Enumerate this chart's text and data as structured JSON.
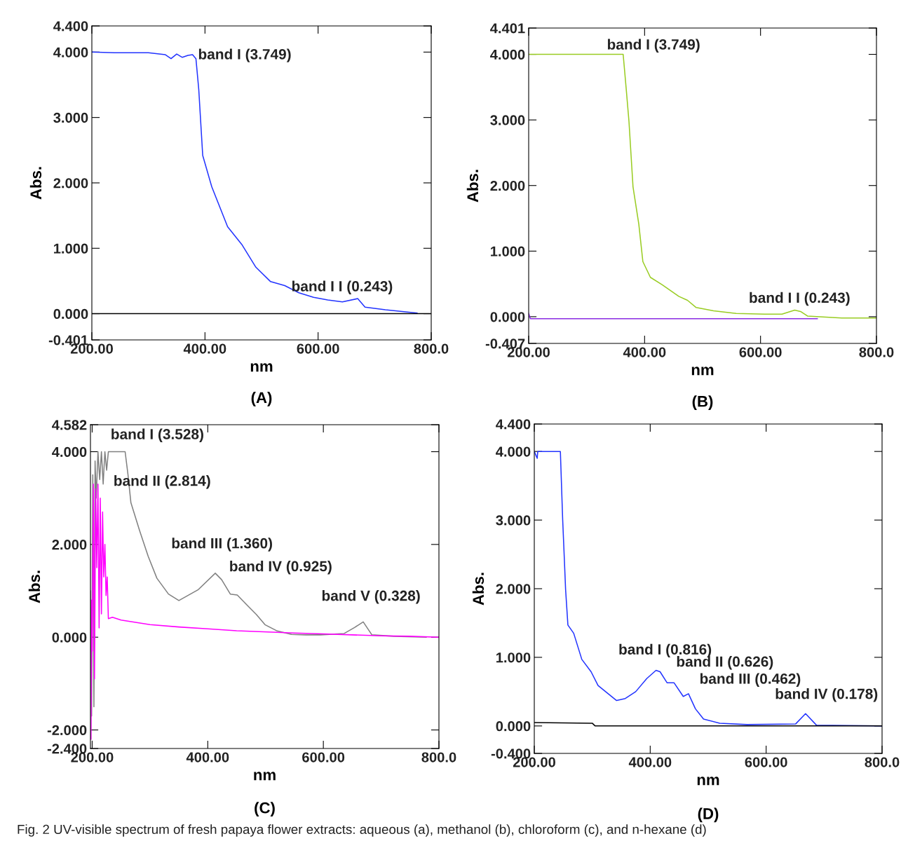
{
  "chart_data": [
    {
      "type": "line",
      "subtitle": "(A)",
      "xlabel": "nm",
      "ylabel": "Abs.",
      "xlim": [
        200,
        800
      ],
      "ylim": [
        -0.401,
        4.4
      ],
      "xticks": [
        {
          "value": 200,
          "label": "200.00"
        },
        {
          "value": 400,
          "label": "400.00"
        },
        {
          "value": 600,
          "label": "600.00"
        },
        {
          "value": 800,
          "label": "800.0"
        }
      ],
      "yticks": [
        {
          "value": -0.401,
          "label": "-0.401"
        },
        {
          "value": 0,
          "label": "0.000"
        },
        {
          "value": 1,
          "label": "1.000"
        },
        {
          "value": 2,
          "label": "2.000"
        },
        {
          "value": 3,
          "label": "3.000"
        },
        {
          "value": 4,
          "label": "4.000"
        },
        {
          "value": 4.4,
          "label": "4.400"
        }
      ],
      "series": [
        {
          "color": "#2233ff",
          "x": [
            200,
            240,
            300,
            330,
            340,
            350,
            360,
            370,
            378,
            384,
            389,
            396,
            412,
            440,
            465,
            490,
            516,
            541,
            566,
            592,
            617,
            643,
            670,
            683,
            719,
            775
          ],
          "values": [
            4.0,
            3.99,
            3.99,
            3.96,
            3.9,
            3.97,
            3.92,
            3.95,
            3.96,
            3.9,
            3.43,
            2.42,
            1.94,
            1.33,
            1.06,
            0.71,
            0.49,
            0.43,
            0.32,
            0.25,
            0.21,
            0.18,
            0.23,
            0.1,
            0.06,
            0.01
          ]
        },
        {
          "color": "#000000",
          "x": [
            200,
            800
          ],
          "values": [
            0,
            0
          ]
        }
      ],
      "annotations": [
        "band I (3.749)",
        "band I I (0.243)"
      ]
    },
    {
      "type": "line",
      "subtitle": "(B)",
      "xlabel": "nm",
      "ylabel": "Abs.",
      "xlim": [
        200,
        800
      ],
      "ylim": [
        -0.407,
        4.401
      ],
      "xticks": [
        {
          "value": 200,
          "label": "200.00"
        },
        {
          "value": 400,
          "label": "400.00"
        },
        {
          "value": 600,
          "label": "600.00"
        },
        {
          "value": 800,
          "label": "800.0"
        }
      ],
      "yticks": [
        {
          "value": -0.407,
          "label": "-0.407"
        },
        {
          "value": 0,
          "label": "0.000"
        },
        {
          "value": 1,
          "label": "1.000"
        },
        {
          "value": 2,
          "label": "2.000"
        },
        {
          "value": 3,
          "label": "3.000"
        },
        {
          "value": 4,
          "label": "4.000"
        },
        {
          "value": 4.401,
          "label": "4.401"
        }
      ],
      "series": [
        {
          "color": "#99cc22",
          "x": [
            200,
            250,
            300,
            363,
            365,
            368,
            373,
            380,
            390,
            397,
            410,
            430,
            459,
            474,
            489,
            519,
            558,
            607,
            637,
            659,
            669,
            681,
            740,
            800
          ],
          "values": [
            4.0,
            4.0,
            4.0,
            4.0,
            3.8,
            3.5,
            2.98,
            1.98,
            1.41,
            0.84,
            0.6,
            0.49,
            0.31,
            0.25,
            0.14,
            0.09,
            0.05,
            0.04,
            0.04,
            0.1,
            0.08,
            0.01,
            -0.02,
            -0.02
          ]
        },
        {
          "color": "#8a2be2",
          "x": [
            200,
            203,
            208,
            698
          ],
          "values": [
            0.05,
            -0.03,
            -0.03,
            -0.03
          ]
        }
      ],
      "annotations": [
        "band I (3.749)",
        "band I I (0.243)"
      ]
    },
    {
      "type": "line",
      "subtitle": "(C)",
      "xlabel": "nm",
      "ylabel": "Abs.",
      "xlim": [
        197,
        800
      ],
      "ylim": [
        -2.4,
        4.582
      ],
      "xticks": [
        {
          "value": 200,
          "label": "200.00"
        },
        {
          "value": 400,
          "label": "400.00"
        },
        {
          "value": 600,
          "label": "600.00"
        },
        {
          "value": 800,
          "label": "800.0"
        }
      ],
      "yticks": [
        {
          "value": -2.4,
          "label": "-2.400"
        },
        {
          "value": -2,
          "label": "-2.000"
        },
        {
          "value": 0,
          "label": "0.000"
        },
        {
          "value": 2,
          "label": "2.000"
        },
        {
          "value": 4,
          "label": "4.000"
        },
        {
          "value": 4.582,
          "label": "4.582"
        }
      ],
      "series": [
        {
          "color": "#808080",
          "x": [
            197,
            199,
            201,
            203,
            205,
            207,
            210,
            213,
            216,
            219,
            222,
            225,
            228,
            240,
            257,
            262,
            267,
            282,
            297,
            312,
            332,
            350,
            383,
            413,
            424,
            439,
            451,
            469,
            484,
            499,
            519,
            545,
            570,
            595,
            636,
            654,
            669,
            684,
            722,
            778
          ],
          "values": [
            1.0,
            -1.7,
            3.5,
            -1.5,
            3.8,
            3.0,
            4.0,
            3.4,
            4.0,
            3.3,
            4.0,
            3.6,
            4.0,
            4.0,
            4.0,
            3.5,
            2.9,
            2.3,
            1.74,
            1.27,
            0.93,
            0.79,
            1.02,
            1.38,
            1.24,
            0.93,
            0.91,
            0.68,
            0.49,
            0.27,
            0.14,
            0.06,
            0.05,
            0.05,
            0.08,
            0.21,
            0.33,
            0.05,
            0.02,
            0.0
          ]
        },
        {
          "color": "#ff00ff",
          "x": [
            198,
            199,
            200,
            202,
            204,
            206,
            208,
            210,
            212,
            214,
            216,
            218,
            220,
            222,
            224,
            226,
            228,
            235,
            250,
            300,
            350,
            400,
            450,
            512,
            550,
            600,
            650,
            700,
            750,
            800
          ],
          "values": [
            -2.2,
            0.8,
            -0.3,
            3.3,
            -0.9,
            3.2,
            1.5,
            3.3,
            0.2,
            3.0,
            0.5,
            2.7,
            1.3,
            2.0,
            0.9,
            1.3,
            0.4,
            0.43,
            0.37,
            0.27,
            0.22,
            0.18,
            0.14,
            0.11,
            0.09,
            0.07,
            0.05,
            0.03,
            0.02,
            0.0
          ]
        }
      ],
      "annotations": [
        "band I (3.528)",
        "band II (2.814)",
        "band III (1.360)",
        "band IV (0.925)",
        "band V (0.328)"
      ]
    },
    {
      "type": "line",
      "subtitle": "(D)",
      "xlabel": "nm",
      "ylabel": "Abs.",
      "xlim": [
        200,
        800
      ],
      "ylim": [
        -0.4,
        4.4
      ],
      "xticks": [
        {
          "value": 200,
          "label": "200.00"
        },
        {
          "value": 400,
          "label": "400.00"
        },
        {
          "value": 600,
          "label": "600.00"
        },
        {
          "value": 800,
          "label": "800.0"
        }
      ],
      "yticks": [
        {
          "value": -0.4,
          "label": "-0.400"
        },
        {
          "value": 0,
          "label": "0.000"
        },
        {
          "value": 1,
          "label": "1.000"
        },
        {
          "value": 2,
          "label": "2.000"
        },
        {
          "value": 3,
          "label": "3.000"
        },
        {
          "value": 4,
          "label": "4.000"
        },
        {
          "value": 4.4,
          "label": "4.400"
        }
      ],
      "series": [
        {
          "color": "#2233ff",
          "x": [
            200,
            205,
            206,
            210,
            245,
            249,
            252,
            254,
            258,
            268,
            282,
            298,
            310,
            323,
            342,
            357,
            375,
            394,
            410,
            417,
            429,
            441,
            457,
            466,
            478,
            492,
            520,
            567,
            651,
            668,
            687,
            800
          ],
          "values": [
            4.0,
            3.9,
            4.0,
            4.0,
            4.0,
            3.0,
            2.4,
            1.99,
            1.47,
            1.35,
            0.97,
            0.79,
            0.59,
            0.5,
            0.37,
            0.4,
            0.5,
            0.69,
            0.81,
            0.79,
            0.63,
            0.63,
            0.43,
            0.47,
            0.25,
            0.1,
            0.04,
            0.02,
            0.03,
            0.18,
            0.01,
            0.0
          ]
        },
        {
          "color": "#000000",
          "x": [
            200,
            300,
            305,
            800
          ],
          "values": [
            0.05,
            0.04,
            0.0,
            0.0
          ]
        }
      ],
      "annotations": [
        "band I (0.816)",
        "band II (0.626)",
        "band III (0.462)",
        "band IV (0.178)",
        "Fig. 2 UV-visible spectrum of fresh papaya flower extracts: aqueous (a), methanol (b), chloroform (c), and n-hexane (d)"
      ]
    }
  ]
}
